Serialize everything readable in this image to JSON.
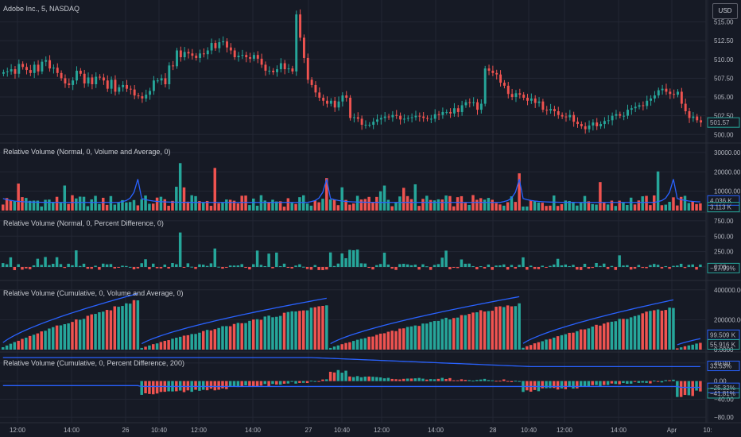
{
  "header": {
    "symbol_title": "Adobe Inc., 5, NASDAQ",
    "currency_button": "USD"
  },
  "panes": [
    {
      "id": "price",
      "title": "",
      "ticks": [
        "515.00",
        "512.50",
        "510.00",
        "507.50",
        "505.00",
        "502.50",
        "500.00"
      ],
      "badges": [
        {
          "text": "501.57",
          "color": "#26a69a"
        }
      ]
    },
    {
      "id": "relvol1",
      "title": "Relative Volume (Normal, 0, Volume and Average, 0)",
      "ticks": [
        "30000.00",
        "20000.00",
        "10000.00"
      ],
      "badges": [
        {
          "text": "4.036 K",
          "color": "#2962ff"
        },
        {
          "text": "3.113 K",
          "color": "#26a69a"
        }
      ]
    },
    {
      "id": "relvol2",
      "title": "Relative Volume (Normal, 0, Percent Difference, 0)",
      "ticks": [
        "750.00",
        "500.00",
        "250.00",
        "0.00"
      ],
      "badges": [
        {
          "text": "−17.99%",
          "color": "#26a69a"
        }
      ]
    },
    {
      "id": "relvol3",
      "title": "Relative Volume (Cumulative, 0, Volume and Average, 0)",
      "ticks": [
        "400000.00",
        "200000.00",
        "0.0000"
      ],
      "badges": [
        {
          "text": "99.509 K",
          "color": "#2962ff"
        },
        {
          "text": "55.916 K",
          "color": "#26a69a"
        }
      ]
    },
    {
      "id": "relvol4",
      "title": "Relative Volume (Cumulative, 0, Percent Difference, 200)",
      "ticks": [
        "40.00",
        "0.00",
        "−40.00",
        "−80.00"
      ],
      "badges": [
        {
          "text": "33.53%",
          "color": "#2962ff"
        },
        {
          "text": "−25.32%",
          "color": "#2962ff"
        },
        {
          "text": "−41.81%",
          "color": "#26a69a"
        }
      ]
    }
  ],
  "time_axis": [
    "12:00",
    "14:00",
    "26",
    "10:40",
    "12:00",
    "14:00",
    "27",
    "10:40",
    "12:00",
    "14:00",
    "28",
    "10:40",
    "12:00",
    "14:00",
    "Apr",
    "10:"
  ],
  "colors": {
    "up": "#26a69a",
    "down": "#ef5350",
    "avg": "#2962ff",
    "bg": "#161a25",
    "grid": "#232734",
    "text": "#b2b5be"
  },
  "chart_data": {
    "type": "candlestick",
    "ylim": [
      499.5,
      517.5
    ],
    "closes": [
      508.3,
      508.4,
      508.7,
      508.1,
      509.4,
      509.0,
      508.6,
      508.2,
      509.3,
      508.4,
      509.7,
      509.9,
      508.8,
      508.9,
      508.2,
      507.5,
      506.8,
      506.6,
      507.2,
      508.5,
      508.1,
      506.8,
      507.6,
      506.7,
      507.7,
      507.6,
      507.2,
      506.1,
      507.3,
      505.7,
      506.3,
      506.6,
      506.1,
      506.0,
      505.2,
      505.1,
      504.8,
      505.3,
      505.8,
      507.2,
      507.2,
      507.5,
      506.7,
      509.2,
      509.1,
      511.2,
      510.3,
      511.0,
      510.8,
      510.5,
      510.2,
      510.8,
      510.7,
      511.2,
      512.2,
      511.5,
      512.3,
      512.4,
      511.6,
      511.2,
      510.3,
      510.5,
      510.6,
      510.3,
      510.1,
      510.6,
      510.1,
      509.3,
      508.5,
      508.5,
      508.3,
      508.7,
      509.5,
      508.7,
      508.8,
      508.4,
      516.0,
      512.9,
      510.2,
      507.3,
      506.6,
      505.6,
      504.9,
      504.5,
      504.1,
      504.5,
      503.6,
      504.4,
      505.2,
      504.9,
      502.2,
      502.3,
      502.1,
      501.3,
      501.3,
      501.3,
      501.7,
      502.0,
      502.2,
      502.4,
      502.3,
      502.6,
      502.5,
      502.0,
      502.1,
      502.2,
      502.3,
      502.5,
      502.4,
      502.2,
      502.1,
      502.1,
      502.7,
      502.6,
      503.0,
      503.0,
      502.8,
      503.5,
      503.0,
      503.9,
      504.3,
      504.2,
      504.3,
      503.3,
      504.1,
      508.8,
      508.5,
      508.2,
      508.0,
      506.9,
      506.5,
      505.4,
      505.0,
      505.5,
      505.3,
      504.9,
      504.5,
      504.8,
      504.2,
      504.4,
      503.3,
      503.2,
      503.4,
      503.1,
      502.6,
      502.4,
      502.3,
      502.6,
      501.7,
      501.4,
      501.1,
      500.7,
      501.2,
      501.6,
      501.1,
      501.4,
      501.8,
      501.9,
      502.5,
      502.7,
      502.5,
      502.5,
      503.3,
      503.5,
      503.7,
      503.9,
      503.8,
      504.5,
      504.8,
      505.2,
      505.9,
      506.1,
      505.7,
      505.4,
      505.3,
      505.7,
      504.1,
      503.1,
      502.2,
      502.4,
      501.9,
      501.6
    ]
  }
}
